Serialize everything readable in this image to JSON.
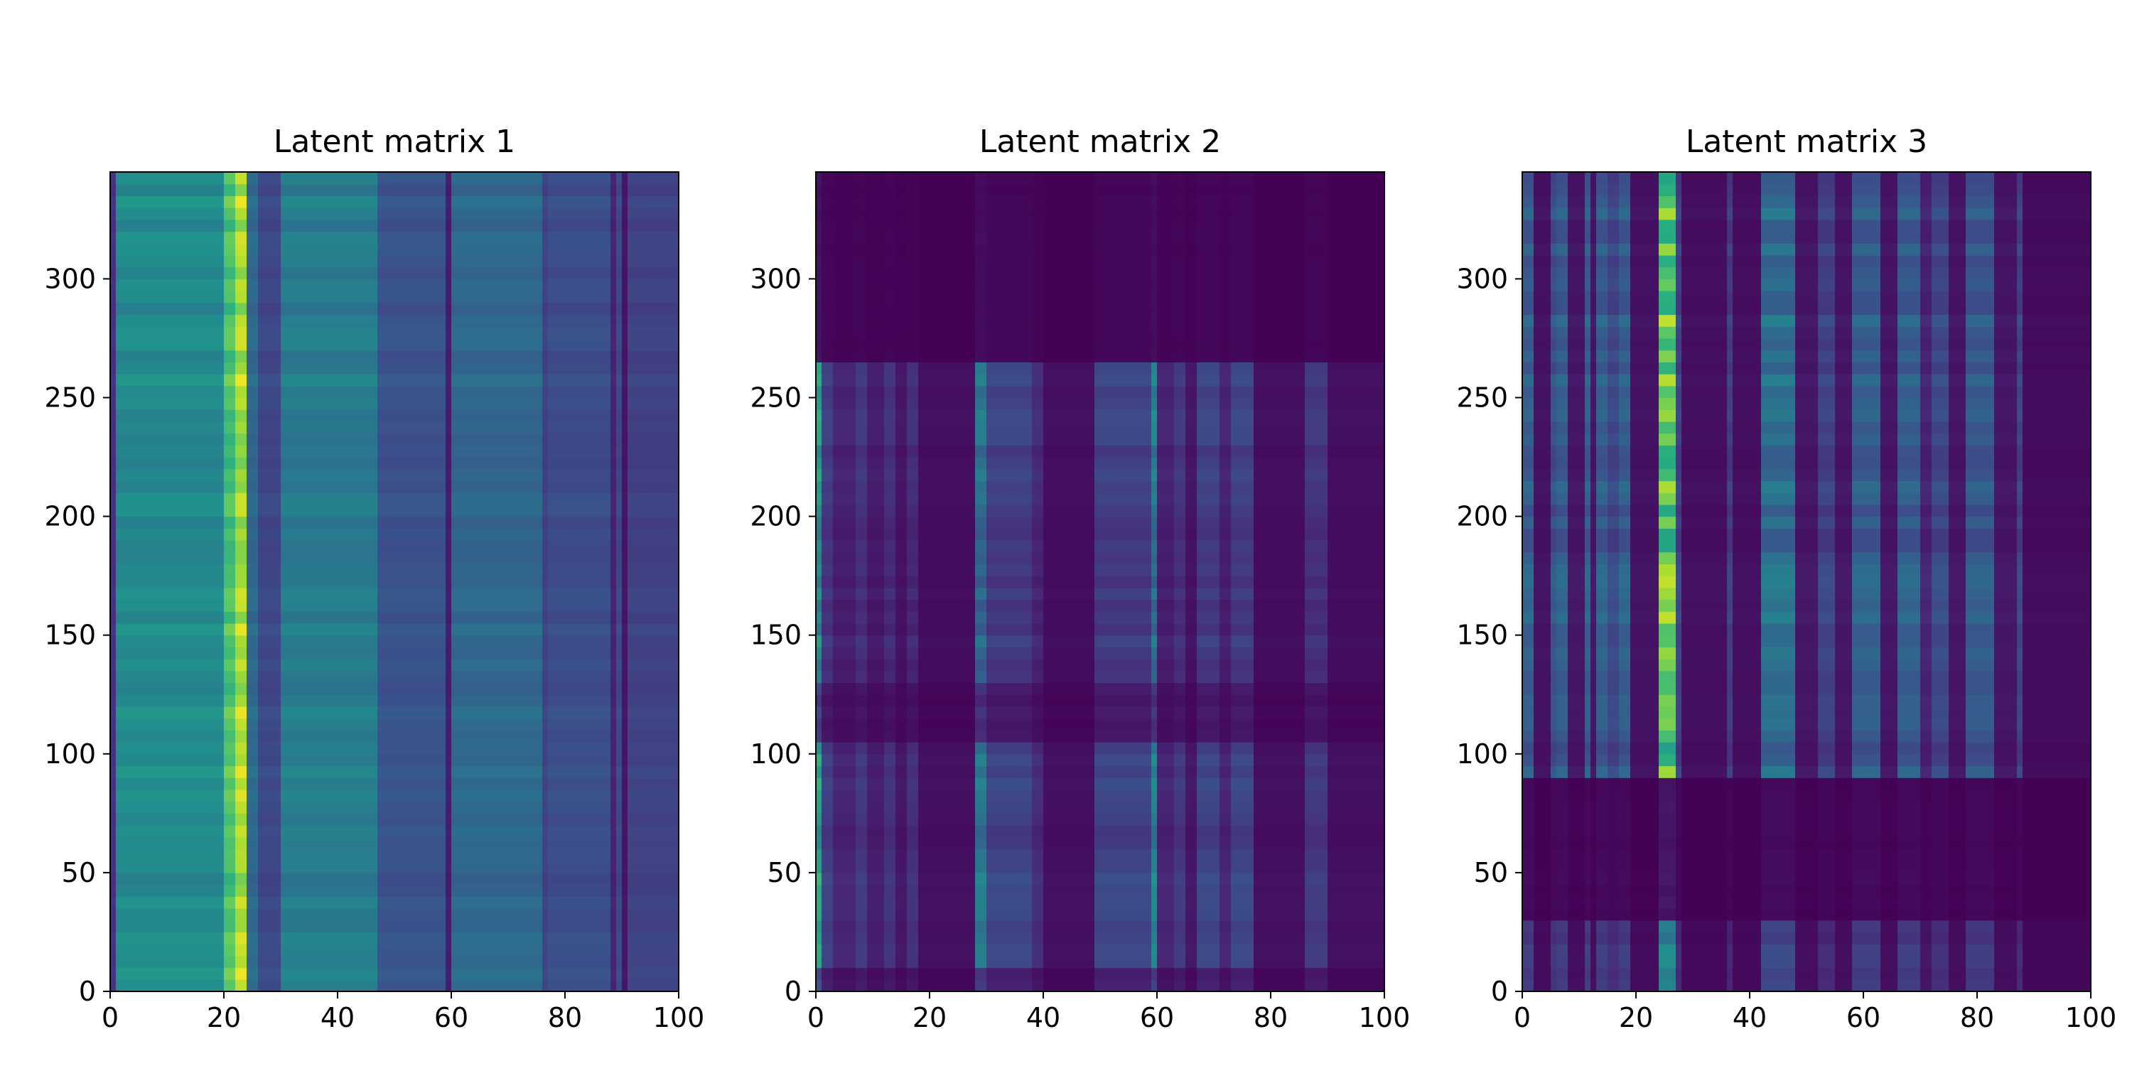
{
  "figure": {
    "background": "#ffffff",
    "colormap": "viridis"
  },
  "chart_data": [
    {
      "type": "heatmap",
      "title": "Latent matrix 1",
      "xlabel": "",
      "ylabel": "",
      "xlim": [
        0,
        100
      ],
      "ylim": [
        0,
        345
      ],
      "xticks": [
        0,
        20,
        40,
        60,
        80,
        100
      ],
      "yticks": [
        0,
        50,
        100,
        150,
        200,
        250,
        300
      ],
      "grid": false,
      "value_range": [
        0,
        1
      ],
      "column_profile": [
        {
          "x": [
            0,
            1
          ],
          "value": 0.15
        },
        {
          "x": [
            1,
            20
          ],
          "value": 0.48
        },
        {
          "x": [
            20,
            22
          ],
          "value": 0.72
        },
        {
          "x": [
            22,
            24
          ],
          "value": 0.88
        },
        {
          "x": [
            24,
            26
          ],
          "value": 0.34
        },
        {
          "x": [
            26,
            30
          ],
          "value": 0.22
        },
        {
          "x": [
            30,
            47
          ],
          "value": 0.42
        },
        {
          "x": [
            47,
            59
          ],
          "value": 0.26
        },
        {
          "x": [
            59,
            60
          ],
          "value": 0.08
        },
        {
          "x": [
            60,
            76
          ],
          "value": 0.34
        },
        {
          "x": [
            76,
            77
          ],
          "value": 0.2
        },
        {
          "x": [
            77,
            88
          ],
          "value": 0.24
        },
        {
          "x": [
            88,
            89
          ],
          "value": 0.1
        },
        {
          "x": [
            89,
            90
          ],
          "value": 0.22
        },
        {
          "x": [
            90,
            91
          ],
          "value": 0.06
        },
        {
          "x": [
            91,
            100
          ],
          "value": 0.2
        }
      ],
      "row_bands": [],
      "row_variation": 0.22
    },
    {
      "type": "heatmap",
      "title": "Latent matrix 2",
      "xlabel": "",
      "ylabel": "",
      "xlim": [
        0,
        100
      ],
      "ylim": [
        0,
        345
      ],
      "xticks": [
        0,
        20,
        40,
        60,
        80,
        100
      ],
      "yticks": [
        0,
        50,
        100,
        150,
        200,
        250,
        300
      ],
      "grid": false,
      "value_range": [
        0,
        1
      ],
      "column_profile": [
        {
          "x": [
            0,
            1
          ],
          "value": 0.55
        },
        {
          "x": [
            1,
            3
          ],
          "value": 0.18
        },
        {
          "x": [
            3,
            7
          ],
          "value": 0.1
        },
        {
          "x": [
            7,
            9
          ],
          "value": 0.16
        },
        {
          "x": [
            9,
            12
          ],
          "value": 0.08
        },
        {
          "x": [
            12,
            14
          ],
          "value": 0.14
        },
        {
          "x": [
            14,
            16
          ],
          "value": 0.06
        },
        {
          "x": [
            16,
            18
          ],
          "value": 0.13
        },
        {
          "x": [
            18,
            28
          ],
          "value": 0.04
        },
        {
          "x": [
            28,
            30
          ],
          "value": 0.38
        },
        {
          "x": [
            30,
            38
          ],
          "value": 0.2
        },
        {
          "x": [
            38,
            40
          ],
          "value": 0.12
        },
        {
          "x": [
            40,
            49
          ],
          "value": 0.04
        },
        {
          "x": [
            49,
            59
          ],
          "value": 0.2
        },
        {
          "x": [
            59,
            60
          ],
          "value": 0.42
        },
        {
          "x": [
            60,
            63
          ],
          "value": 0.1
        },
        {
          "x": [
            63,
            65
          ],
          "value": 0.16
        },
        {
          "x": [
            65,
            67
          ],
          "value": 0.06
        },
        {
          "x": [
            67,
            71
          ],
          "value": 0.2
        },
        {
          "x": [
            71,
            73
          ],
          "value": 0.1
        },
        {
          "x": [
            73,
            77
          ],
          "value": 0.2
        },
        {
          "x": [
            77,
            86
          ],
          "value": 0.04
        },
        {
          "x": [
            86,
            90
          ],
          "value": 0.16
        },
        {
          "x": [
            90,
            100
          ],
          "value": 0.04
        }
      ],
      "row_bands": [
        {
          "y": [
            0,
            10
          ],
          "value": 0.45
        },
        {
          "y": [
            10,
            104
          ],
          "value": 1.0
        },
        {
          "y": [
            104,
            132
          ],
          "value": 0.35
        },
        {
          "y": [
            132,
            198
          ],
          "value": 0.85
        },
        {
          "y": [
            198,
            265
          ],
          "value": 0.95
        },
        {
          "y": [
            265,
            345
          ],
          "value": 0.08
        }
      ],
      "row_variation": 0.5
    },
    {
      "type": "heatmap",
      "title": "Latent matrix 3",
      "xlabel": "",
      "ylabel": "",
      "xlim": [
        0,
        100
      ],
      "ylim": [
        0,
        345
      ],
      "xticks": [
        0,
        20,
        40,
        60,
        80,
        100
      ],
      "yticks": [
        0,
        50,
        100,
        150,
        200,
        250,
        300
      ],
      "grid": false,
      "value_range": [
        0,
        1
      ],
      "column_profile": [
        {
          "x": [
            0,
            2
          ],
          "value": 0.3
        },
        {
          "x": [
            2,
            5
          ],
          "value": 0.05
        },
        {
          "x": [
            5,
            6
          ],
          "value": 0.25
        },
        {
          "x": [
            6,
            8
          ],
          "value": 0.3
        },
        {
          "x": [
            8,
            11
          ],
          "value": 0.06
        },
        {
          "x": [
            11,
            12
          ],
          "value": 0.3
        },
        {
          "x": [
            12,
            13
          ],
          "value": 0.06
        },
        {
          "x": [
            13,
            15
          ],
          "value": 0.3
        },
        {
          "x": [
            15,
            17
          ],
          "value": 0.22
        },
        {
          "x": [
            17,
            19
          ],
          "value": 0.3
        },
        {
          "x": [
            19,
            24
          ],
          "value": 0.05
        },
        {
          "x": [
            24,
            27
          ],
          "value": 0.75
        },
        {
          "x": [
            27,
            28
          ],
          "value": 0.2
        },
        {
          "x": [
            28,
            36
          ],
          "value": 0.04
        },
        {
          "x": [
            36,
            37
          ],
          "value": 0.18
        },
        {
          "x": [
            37,
            42
          ],
          "value": 0.04
        },
        {
          "x": [
            42,
            48
          ],
          "value": 0.36
        },
        {
          "x": [
            48,
            52
          ],
          "value": 0.06
        },
        {
          "x": [
            52,
            55
          ],
          "value": 0.2
        },
        {
          "x": [
            55,
            58
          ],
          "value": 0.06
        },
        {
          "x": [
            58,
            63
          ],
          "value": 0.3
        },
        {
          "x": [
            63,
            66
          ],
          "value": 0.06
        },
        {
          "x": [
            66,
            70
          ],
          "value": 0.3
        },
        {
          "x": [
            70,
            72
          ],
          "value": 0.1
        },
        {
          "x": [
            72,
            75
          ],
          "value": 0.22
        },
        {
          "x": [
            75,
            78
          ],
          "value": 0.06
        },
        {
          "x": [
            78,
            83
          ],
          "value": 0.28
        },
        {
          "x": [
            83,
            87
          ],
          "value": 0.06
        },
        {
          "x": [
            87,
            88
          ],
          "value": 0.2
        },
        {
          "x": [
            88,
            100
          ],
          "value": 0.03
        }
      ],
      "row_bands": [
        {
          "y": [
            0,
            30
          ],
          "value": 0.55
        },
        {
          "y": [
            30,
            90
          ],
          "value": 0.08
        },
        {
          "y": [
            90,
            135
          ],
          "value": 0.95
        },
        {
          "y": [
            135,
            345
          ],
          "value": 1.0
        }
      ],
      "row_variation": 0.45
    }
  ]
}
